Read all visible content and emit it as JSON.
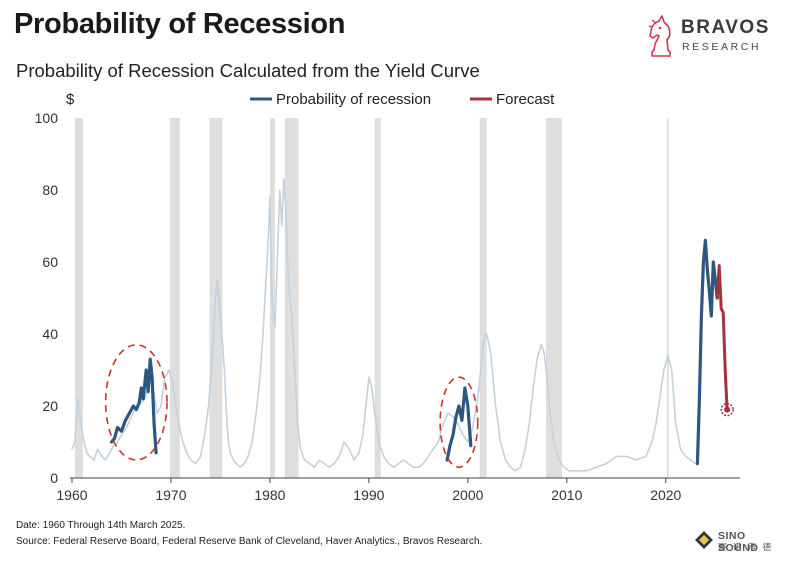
{
  "header": {
    "title": "Probability of Recession",
    "subtitle": "Probability of Recession Calculated from the Yield Curve"
  },
  "logo": {
    "name": "BRAVOS",
    "tagline": "RESEARCH",
    "icon": "chess-knight-icon",
    "color": "#c93a4e"
  },
  "footer": {
    "date_note": "Date: 1960 Through 14th March 2025.",
    "source": "Source: Federal Reserve Board, Federal Reserve Bank of Cleveland, Haver Analytics., Bravos Research."
  },
  "watermark": {
    "name": "SINO SOUND",
    "subtitle": "赛 诺 声 德",
    "icon": "diamond-icon"
  },
  "chart_data": {
    "type": "line",
    "ylabel": "$",
    "ylim": [
      0,
      100
    ],
    "xlim": [
      1959.8,
      2027.5
    ],
    "yticks": [
      0,
      20,
      40,
      60,
      80,
      100
    ],
    "xticks": [
      1960,
      1970,
      1980,
      1990,
      2000,
      2010,
      2020
    ],
    "grid": false,
    "legend": {
      "position": "top-center",
      "entries": [
        "Probability of recession",
        "Forecast"
      ]
    },
    "colors": {
      "history": "#c3d1de",
      "highlight": "#2d5780",
      "forecast": "#a8303d",
      "recession_band": "#dedede",
      "circle": "#c0392b"
    },
    "recession_bands": [
      [
        1960.3,
        1961.1
      ],
      [
        1969.9,
        1970.9
      ],
      [
        1973.9,
        1975.2
      ],
      [
        1980.0,
        1980.5
      ],
      [
        1981.5,
        1982.9
      ],
      [
        1990.6,
        1991.2
      ],
      [
        2001.2,
        2001.9
      ],
      [
        2007.9,
        2009.5
      ],
      [
        2020.1,
        2020.3
      ]
    ],
    "series": [
      {
        "name": "Probability of recession",
        "role": "history",
        "x": [
          1960.0,
          1960.3,
          1960.6,
          1960.9,
          1961.2,
          1961.5,
          1961.8,
          1962.2,
          1962.6,
          1963.0,
          1963.4,
          1963.8,
          1964.2,
          1964.6,
          1965.0,
          1965.5,
          1966.0,
          1966.5,
          1967.0,
          1967.4,
          1967.8,
          1968.2,
          1968.6,
          1969.0,
          1969.4,
          1969.8,
          1970.2,
          1970.5,
          1970.8,
          1971.2,
          1971.6,
          1972.0,
          1972.5,
          1973.0,
          1973.4,
          1973.8,
          1974.2,
          1974.5,
          1974.7,
          1974.9,
          1975.1,
          1975.4,
          1975.6,
          1975.8,
          1976.0,
          1976.3,
          1976.6,
          1977.0,
          1977.4,
          1977.8,
          1978.2,
          1978.6,
          1979.0,
          1979.3,
          1979.6,
          1979.8,
          1980.0,
          1980.2,
          1980.5,
          1980.8,
          1981.0,
          1981.2,
          1981.4,
          1981.6,
          1981.8,
          1982.0,
          1982.2,
          1982.5,
          1982.8,
          1983.1,
          1983.5,
          1984.0,
          1984.5,
          1985.0,
          1985.5,
          1986.0,
          1986.5,
          1987.0,
          1987.5,
          1988.0,
          1988.5,
          1989.0,
          1989.4,
          1989.7,
          1990.0,
          1990.3,
          1990.6,
          1991.0,
          1991.5,
          1992.0,
          1992.5,
          1993.0,
          1993.5,
          1994.0,
          1994.5,
          1995.0,
          1995.5,
          1996.0,
          1996.5,
          1997.0,
          1997.5,
          1998.0,
          1998.5,
          1999.0,
          1999.5,
          2000.0,
          2000.5,
          2001.0,
          2001.3,
          2001.6,
          2001.9,
          2002.3,
          2002.8,
          2003.3,
          2003.8,
          2004.3,
          2004.8,
          2005.3,
          2005.8,
          2006.2,
          2006.6,
          2007.0,
          2007.4,
          2007.7,
          2008.0,
          2008.3,
          2008.7,
          2009.2,
          2009.7,
          2010.2,
          2011.0,
          2012.0,
          2013.0,
          2014.0,
          2015.0,
          2016.0,
          2017.0,
          2018.0,
          2018.6,
          2019.0,
          2019.4,
          2019.8,
          2020.2,
          2020.6,
          2021.0,
          2021.5,
          2022.0,
          2022.5,
          2023.0
        ],
        "values": [
          8,
          10,
          22,
          15,
          10,
          7,
          6,
          5,
          8,
          6,
          5,
          7,
          9,
          10,
          12,
          14,
          17,
          20,
          21,
          22,
          28,
          25,
          18,
          20,
          28,
          30,
          26,
          20,
          15,
          10,
          7,
          5,
          4,
          6,
          12,
          20,
          35,
          50,
          55,
          48,
          42,
          30,
          18,
          10,
          7,
          5,
          4,
          3,
          4,
          6,
          10,
          18,
          28,
          40,
          55,
          64,
          78,
          50,
          42,
          64,
          80,
          70,
          83,
          75,
          60,
          50,
          45,
          30,
          15,
          8,
          5,
          4,
          3,
          5,
          4,
          3,
          4,
          6,
          10,
          8,
          5,
          7,
          12,
          20,
          28,
          25,
          18,
          10,
          6,
          4,
          3,
          4,
          5,
          4,
          3,
          3,
          4,
          6,
          8,
          10,
          15,
          18,
          17,
          15,
          12,
          10,
          14,
          22,
          30,
          38,
          40,
          35,
          20,
          10,
          5,
          3,
          2,
          3,
          8,
          15,
          25,
          33,
          37,
          35,
          28,
          18,
          10,
          5,
          3,
          2,
          2,
          2,
          3,
          4,
          6,
          6,
          5,
          6,
          10,
          15,
          22,
          30,
          34,
          30,
          15,
          8,
          6,
          5,
          4
        ]
      },
      {
        "name": "Probability of recession (circled 1964–1968)",
        "role": "highlight",
        "x": [
          1964.0,
          1964.3,
          1964.6,
          1965.0,
          1965.4,
          1965.8,
          1966.2,
          1966.5,
          1966.8,
          1967.0,
          1967.2,
          1967.5,
          1967.7,
          1967.9,
          1968.1,
          1968.3,
          1968.5
        ],
        "values": [
          10,
          11,
          14,
          13,
          16,
          18,
          20,
          19,
          21,
          25,
          22,
          30,
          24,
          33,
          28,
          15,
          7
        ]
      },
      {
        "name": "Probability of recession (circled 1998–2000)",
        "role": "highlight",
        "x": [
          1997.9,
          1998.2,
          1998.5,
          1998.8,
          1999.1,
          1999.4,
          1999.7,
          2000.0,
          2000.3
        ],
        "values": [
          5,
          9,
          12,
          17,
          20,
          16,
          25,
          20,
          9
        ]
      },
      {
        "name": "Probability of recession (2023–2025)",
        "role": "highlight",
        "x": [
          2023.2,
          2023.4,
          2023.6,
          2023.8,
          2024.0,
          2024.2,
          2024.4,
          2024.6,
          2024.8,
          2025.0,
          2025.2
        ],
        "values": [
          4,
          22,
          45,
          60,
          66,
          58,
          52,
          45,
          60,
          55,
          50
        ]
      },
      {
        "name": "Forecast",
        "role": "forecast",
        "x": [
          2025.2,
          2025.4,
          2025.6,
          2025.8,
          2026.0,
          2026.2
        ],
        "values": [
          50,
          59,
          47,
          46,
          30,
          19
        ]
      }
    ],
    "forecast_end": {
      "x": 2026.2,
      "value": 19
    },
    "circled_ranges": [
      {
        "x": [
          1963.4,
          1969.6
        ],
        "y": [
          5,
          37
        ]
      },
      {
        "x": [
          1997.2,
          2001.0
        ],
        "y": [
          3,
          28
        ]
      }
    ]
  }
}
